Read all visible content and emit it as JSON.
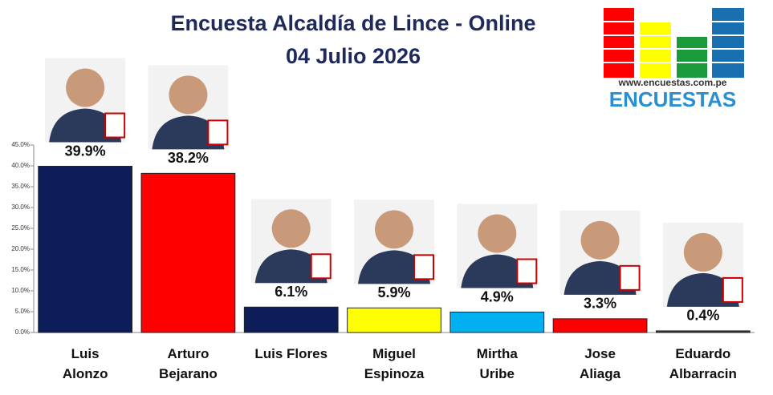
{
  "chart_data": {
    "type": "bar",
    "title": "Encuesta Alcaldía de Lince - Online",
    "subtitle": "04 Julio 2026",
    "categories": [
      "Luis Alonzo",
      "Arturo Bejarano",
      "Luis Flores",
      "Miguel Espinoza",
      "Mirtha Uribe",
      "Jose Aliaga",
      "Eduardo Albarracin"
    ],
    "values": [
      39.9,
      38.2,
      6.1,
      5.9,
      4.9,
      3.3,
      0.4
    ],
    "value_labels": [
      "39.9%",
      "38.2%",
      "6.1%",
      "5.9%",
      "4.9%",
      "3.3%",
      "0.4%"
    ],
    "colors": [
      "#0c1d5a",
      "#ff0000",
      "#0c1d5a",
      "#ffff00",
      "#00b0f0",
      "#ff0000",
      "#3a3a2a"
    ],
    "ylim": [
      0,
      45
    ],
    "yticks": [
      {
        "value": 0,
        "label": "0.0%"
      },
      {
        "value": 5,
        "label": "5.0%"
      },
      {
        "value": 10,
        "label": "10.0%"
      },
      {
        "value": 15,
        "label": "15.0%"
      },
      {
        "value": 20,
        "label": "20.0%"
      },
      {
        "value": 25,
        "label": "25.0%"
      },
      {
        "value": 30,
        "label": "30.0%"
      },
      {
        "value": 35,
        "label": "35.0%"
      },
      {
        "value": 40,
        "label": "40.0%"
      },
      {
        "value": 45,
        "label": "45.0%"
      }
    ],
    "grid": false
  },
  "logo": {
    "url": "www.encuestas.com.pe",
    "name": "ENCUESTAS"
  }
}
